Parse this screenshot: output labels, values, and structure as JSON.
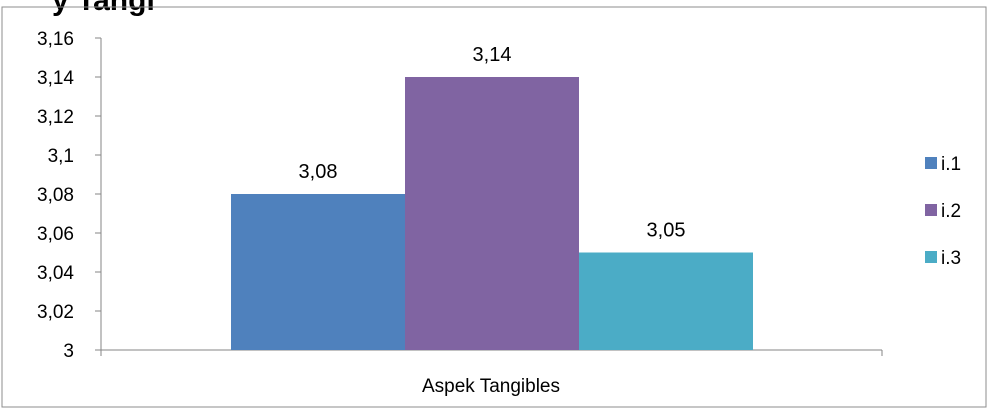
{
  "chart_data": {
    "type": "bar",
    "title_fragment": "y Tangi",
    "categories": [
      "Aspek Tangibles"
    ],
    "series": [
      {
        "name": "i.1",
        "values": [
          3.08
        ],
        "label": "3,08",
        "color": "#4F81BD"
      },
      {
        "name": "i.2",
        "values": [
          3.14
        ],
        "label": "3,14",
        "color": "#8064A2"
      },
      {
        "name": "i.3",
        "values": [
          3.05
        ],
        "label": "3,05",
        "color": "#4BACC6"
      }
    ],
    "ylim": [
      3,
      3.16
    ],
    "yticks": [
      "3",
      "3,02",
      "3,04",
      "3,06",
      "3,08",
      "3,1",
      "3,12",
      "3,14",
      "3,16"
    ],
    "xlabel": "",
    "ylabel": "",
    "grid": false,
    "legend_position": "right"
  }
}
